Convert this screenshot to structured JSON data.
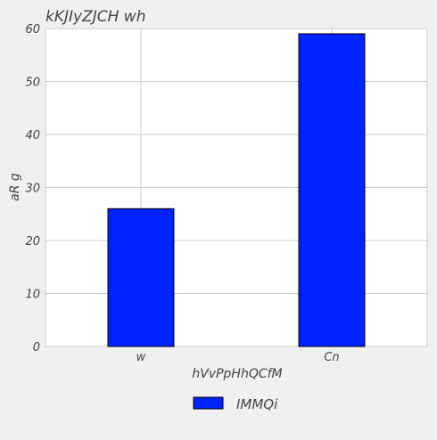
{
  "chart_data": {
    "type": "bar",
    "title": "kKJIyZJCH wh",
    "xlabel": "hVvPpHhQCfM",
    "ylabel": "aR  g",
    "categories": [
      "w",
      "Cn"
    ],
    "series": [
      {
        "name": "IMMQi",
        "values": [
          26,
          59
        ],
        "color": "#0022ff"
      }
    ],
    "ylim": [
      0,
      60
    ],
    "yticks": [
      0,
      10,
      20,
      30,
      40,
      50,
      60
    ],
    "grid": true,
    "legend_position": "bottom-center"
  },
  "colors": {
    "background": "#f0f0f0",
    "plot_background": "#ffffff",
    "grid": "#cbcbcb",
    "bar": "#0022ff",
    "bar_edge": "#000000",
    "text": "#444444"
  }
}
